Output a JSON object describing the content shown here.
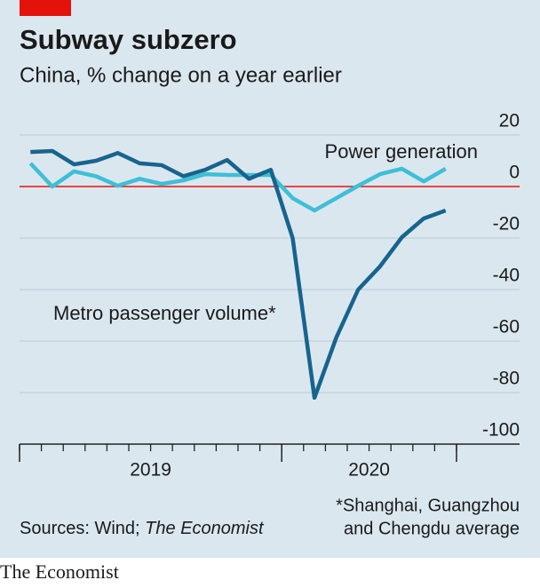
{
  "chart_data": {
    "type": "line",
    "title": "Subway subzero",
    "subtitle": "China, % change on a year earlier",
    "x": [
      2019.0417,
      2019.125,
      2019.2083,
      2019.2917,
      2019.375,
      2019.4583,
      2019.5417,
      2019.625,
      2019.7083,
      2019.7917,
      2019.875,
      2019.9583,
      2020.0417,
      2020.125,
      2020.2083,
      2020.2917,
      2020.375,
      2020.4583,
      2020.5417,
      2020.625
    ],
    "series": [
      {
        "name": "Metro passenger volume*",
        "color": "#17648d",
        "values": [
          13.4,
          13.8,
          8.6,
          10,
          13,
          9,
          8.3,
          4,
          6.5,
          10.3,
          3,
          6.5,
          -20,
          -82,
          -58.6,
          -40,
          -31,
          -19.7,
          -12.4,
          -9.3
        ]
      },
      {
        "name": "Power generation",
        "color": "#3ebfd6",
        "values": [
          9,
          0,
          5.9,
          4,
          0.3,
          3,
          1,
          2.4,
          4.8,
          4.5,
          4.5,
          4.5,
          -4.5,
          -9.3,
          -4.5,
          0.3,
          4.8,
          6.9,
          2,
          6.9
        ]
      }
    ],
    "xlim": [
      2019,
      2020.6667
    ],
    "xticks": [
      2019,
      2019.0833,
      2019.1667,
      2019.25,
      2019.3333,
      2019.4167,
      2019.5,
      2019.5833,
      2019.6667,
      2019.75,
      2019.8333,
      2019.9167,
      2020,
      2020.0833,
      2020.1667,
      2020.25,
      2020.3333,
      2020.4167,
      2020.5,
      2020.5833,
      2020.6667
    ],
    "xmajor_ticks": [
      2019,
      2020,
      2020.6667
    ],
    "year_labels": [
      {
        "value": 2019.5,
        "label": "2019"
      },
      {
        "value": 2020.3333,
        "label": "2020"
      }
    ],
    "ylim": [
      -100,
      20
    ],
    "yticks": [
      20,
      0,
      -20,
      -40,
      -60,
      -80,
      -100
    ],
    "zero_line_color": "#e3120b",
    "grid": true,
    "source_prefix": "Sources: Wind; ",
    "source_italic": "The Economist",
    "note": [
      "*Shanghai, Guangzhou",
      "and Chengdu average"
    ],
    "brand": "The Economist"
  }
}
